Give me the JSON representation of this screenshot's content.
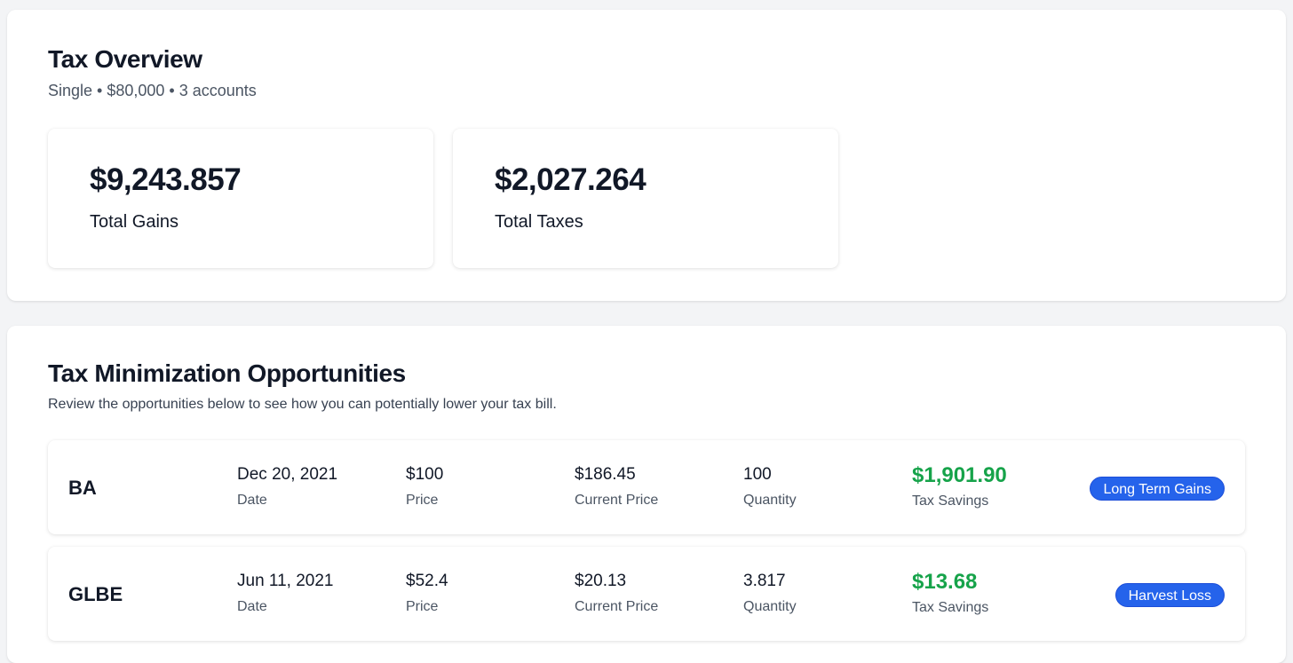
{
  "overview": {
    "title": "Tax Overview",
    "subtitle": "Single • $80,000 • 3 accounts",
    "stats": [
      {
        "value": "$9,243.857",
        "label": "Total Gains"
      },
      {
        "value": "$2,027.264",
        "label": "Total Taxes"
      }
    ]
  },
  "opportunities": {
    "title": "Tax Minimization Opportunities",
    "description": "Review the opportunities below to see how you can potentially lower your tax bill.",
    "columns": {
      "date": "Date",
      "price": "Price",
      "current_price": "Current Price",
      "quantity": "Quantity",
      "tax_savings": "Tax Savings"
    },
    "rows": [
      {
        "ticker": "BA",
        "date": "Dec 20, 2021",
        "price": "$100",
        "current_price": "$186.45",
        "quantity": "100",
        "tax_savings": "$1,901.90",
        "action": "Long Term Gains"
      },
      {
        "ticker": "GLBE",
        "date": "Jun 11, 2021",
        "price": "$52.4",
        "current_price": "$20.13",
        "quantity": "3.817",
        "tax_savings": "$13.68",
        "action": "Harvest Loss"
      }
    ]
  },
  "colors": {
    "savings": "#16a34a",
    "badge": "#2563eb",
    "background": "#f3f4f6"
  }
}
